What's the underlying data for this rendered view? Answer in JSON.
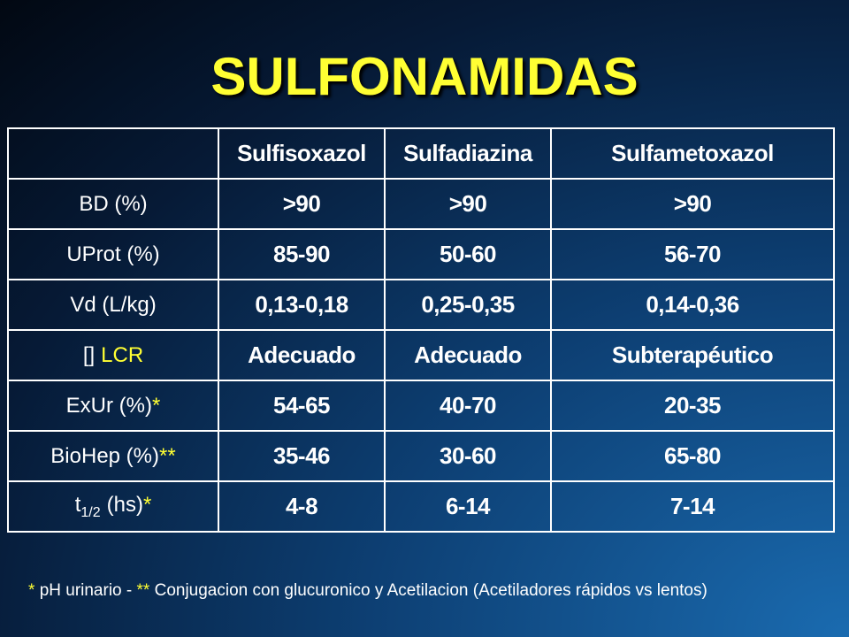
{
  "title": "SULFONAMIDAS",
  "table": {
    "header": [
      "Sulfisoxazol",
      "Sulfadiazina",
      "Sulfametoxazol"
    ],
    "rows": [
      {
        "label": "BD (%)",
        "cells": [
          ">90",
          ">90",
          ">90"
        ]
      },
      {
        "label": "UProt (%)",
        "cells": [
          "85-90",
          "50-60",
          "56-70"
        ]
      },
      {
        "label": "Vd (L/kg)",
        "cells": [
          "0,13-0,18",
          "0,25-0,35",
          "0,14-0,36"
        ]
      },
      {
        "label": "[]",
        "note": "LCR",
        "cells": [
          "Adecuado",
          "Adecuado",
          "Subterapéutico"
        ]
      },
      {
        "label": "ExUr (%)",
        "note": "*",
        "cells": [
          "54-65",
          "40-70",
          "20-35"
        ]
      },
      {
        "label": "BioHep (%)",
        "note": "**",
        "cells": [
          "35-46",
          "30-60",
          "65-80"
        ]
      },
      {
        "label": "t",
        "sub": "1/2",
        "label_rest": "(hs)",
        "note": "*",
        "cells": [
          "4-8",
          "6-14",
          "7-14"
        ]
      }
    ]
  },
  "footnote": {
    "mark1": "*",
    "text1": "pH urinario -",
    "mark2": "**",
    "text2": "Conjugacion con glucuronico y Acetilacion (Acetiladores rápidos vs lentos)"
  }
}
